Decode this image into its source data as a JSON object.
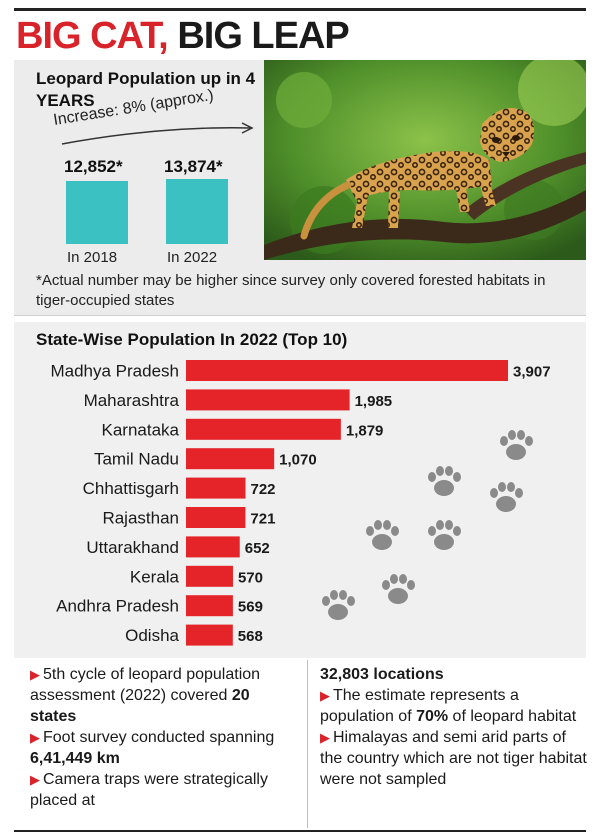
{
  "headline": {
    "part1": "BIG CAT,",
    "part2": "BIG LEAP"
  },
  "population_change": {
    "title": "Leopard Population up in 4 YEARS",
    "increase_label": "Increase: 8% (approx.)",
    "bars": [
      {
        "value_label": "12,852*",
        "year_label": "In 2018"
      },
      {
        "value_label": "13,874*",
        "year_label": "In 2022"
      }
    ]
  },
  "footnote": "*Actual number may be higher since survey only covered forested habitats in tiger-occupied states",
  "state_section": {
    "title": "State-Wise Population In 2022 (Top 10)"
  },
  "chart_data": {
    "type": "bar",
    "orientation": "horizontal",
    "title": "State-Wise Population In 2022 (Top 10)",
    "categories": [
      "Madhya Pradesh",
      "Maharashtra",
      "Karnataka",
      "Tamil Nadu",
      "Chhattisgarh",
      "Rajasthan",
      "Uttarakhand",
      "Kerala",
      "Andhra Pradesh",
      "Odisha"
    ],
    "values": [
      3907,
      1985,
      1879,
      1070,
      722,
      721,
      652,
      570,
      569,
      568
    ],
    "value_labels": [
      "3,907",
      "1,985",
      "1,879",
      "1,070",
      "722",
      "721",
      "652",
      "570",
      "569",
      "568"
    ],
    "bar_color": "#e42428",
    "grid": false
  },
  "bottom_left": [
    {
      "pre": "5th cycle of leopard population assessment (2022) covered ",
      "bold": "20 states",
      "post": ""
    },
    {
      "pre": "Foot survey conducted spanning ",
      "bold": "6,41,449 km",
      "post": ""
    },
    {
      "pre": "Camera traps were strategically placed at",
      "bold": "",
      "post": ""
    }
  ],
  "bottom_right": {
    "heading": "32,803 locations",
    "items": [
      {
        "pre": "The estimate represents a population of ",
        "bold": "70%",
        "post": " of leopard habitat"
      },
      {
        "pre": "Himalayas and semi arid parts of the country which are not tiger habitat were not sampled",
        "bold": "",
        "post": ""
      }
    ]
  },
  "colors": {
    "accent_red": "#d9232a",
    "teal": "#3cc1c2",
    "bar_red": "#e42428"
  },
  "icons": {
    "paw": "paw-print-icon",
    "bullet": "triangle-bullet-icon"
  }
}
